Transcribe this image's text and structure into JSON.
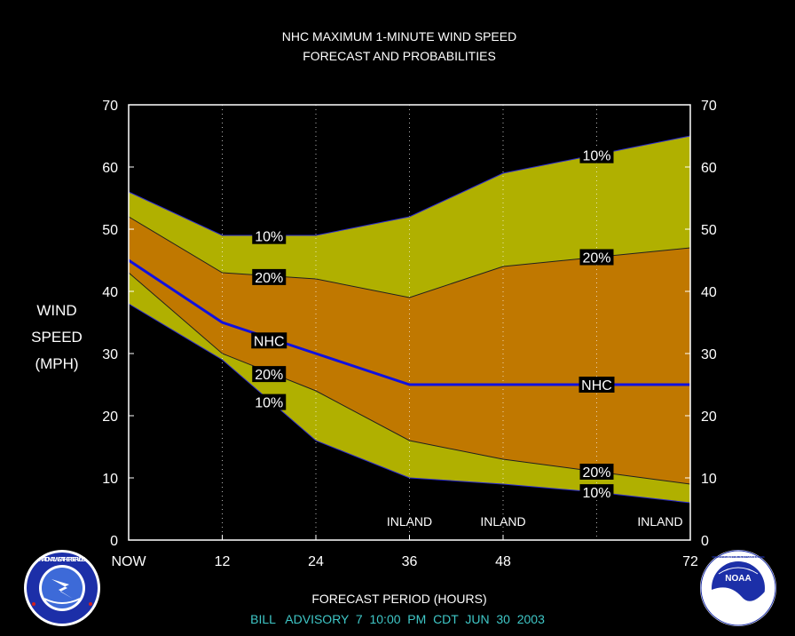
{
  "chart_data": {
    "type": "area",
    "title": "NHC MAXIMUM 1-MINUTE WIND SPEED",
    "subtitle": "FORECAST AND PROBABILITIES",
    "ylabel_lines": [
      "WIND",
      "SPEED",
      "(MPH)"
    ],
    "xlabel": "FORECAST PERIOD (HOURS)",
    "advisory": "BILL   ADVISORY  7  10:00  PM  CDT  JUN  30  2003",
    "x": [
      0,
      12,
      24,
      36,
      48,
      72
    ],
    "x_tick_labels": [
      "NOW",
      "12",
      "24",
      "36",
      "48",
      "72"
    ],
    "xlim": [
      0,
      72
    ],
    "ylim": [
      0,
      70
    ],
    "y_ticks": [
      0,
      10,
      20,
      30,
      40,
      50,
      60,
      70
    ],
    "colors": {
      "outer_band": "#b0b000",
      "inner_band": "#c07800",
      "nhc_line": "#1010e0",
      "plot_border": "#ffffff",
      "background": "#000000"
    },
    "series": [
      {
        "name": "10%",
        "role": "upper_10",
        "x": [
          0,
          12,
          24,
          36,
          48,
          60,
          72
        ],
        "values": [
          56,
          49,
          49,
          52,
          59,
          62,
          65
        ]
      },
      {
        "name": "20%",
        "role": "upper_20",
        "x": [
          0,
          12,
          24,
          36,
          48,
          60,
          72
        ],
        "values": [
          52,
          43,
          42,
          39,
          44,
          45.5,
          47
        ]
      },
      {
        "name": "NHC",
        "role": "nhc",
        "x": [
          0,
          12,
          24,
          36,
          48,
          60,
          72
        ],
        "values": [
          45,
          35,
          30,
          25,
          25,
          25,
          25
        ]
      },
      {
        "name": "20%",
        "role": "lower_20",
        "x": [
          0,
          12,
          24,
          36,
          48,
          60,
          72
        ],
        "values": [
          43,
          30,
          24,
          16,
          13,
          11,
          9
        ]
      },
      {
        "name": "10%",
        "role": "lower_10",
        "x": [
          0,
          12,
          24,
          36,
          48,
          60,
          72
        ],
        "values": [
          38,
          29,
          16,
          10,
          9,
          7.7,
          6
        ]
      }
    ],
    "series_labels": [
      {
        "text": "10%",
        "x": 18,
        "y": 48.9
      },
      {
        "text": "20%",
        "x": 18,
        "y": 42.3
      },
      {
        "text": "NHC",
        "x": 18,
        "y": 32.1
      },
      {
        "text": "20%",
        "x": 18,
        "y": 26.7
      },
      {
        "text": "10%",
        "x": 18,
        "y": 22.2
      },
      {
        "text": "10%",
        "x": 60,
        "y": 61.9
      },
      {
        "text": "20%",
        "x": 60,
        "y": 45.5
      },
      {
        "text": "NHC",
        "x": 60,
        "y": 25
      },
      {
        "text": "20%",
        "x": 60,
        "y": 11
      },
      {
        "text": "10%",
        "x": 60,
        "y": 7.7
      }
    ],
    "annotations": [
      {
        "text": "INLAND",
        "x": 36
      },
      {
        "text": "INLAND",
        "x": 48
      },
      {
        "text": "INLAND",
        "x": 72
      }
    ],
    "grid_x": [
      12,
      24,
      36,
      48,
      60
    ]
  },
  "logos": {
    "left": "national-weather-service-seal",
    "left_text": "NATIONAL WEATHER SERVICE",
    "right": "noaa-seal",
    "right_text": "NOAA",
    "right_ring_text": "NATIONAL OCEANIC AND ATMOSPHERIC ADMINISTRATION · U.S. DEPARTMENT OF COMMERCE"
  }
}
